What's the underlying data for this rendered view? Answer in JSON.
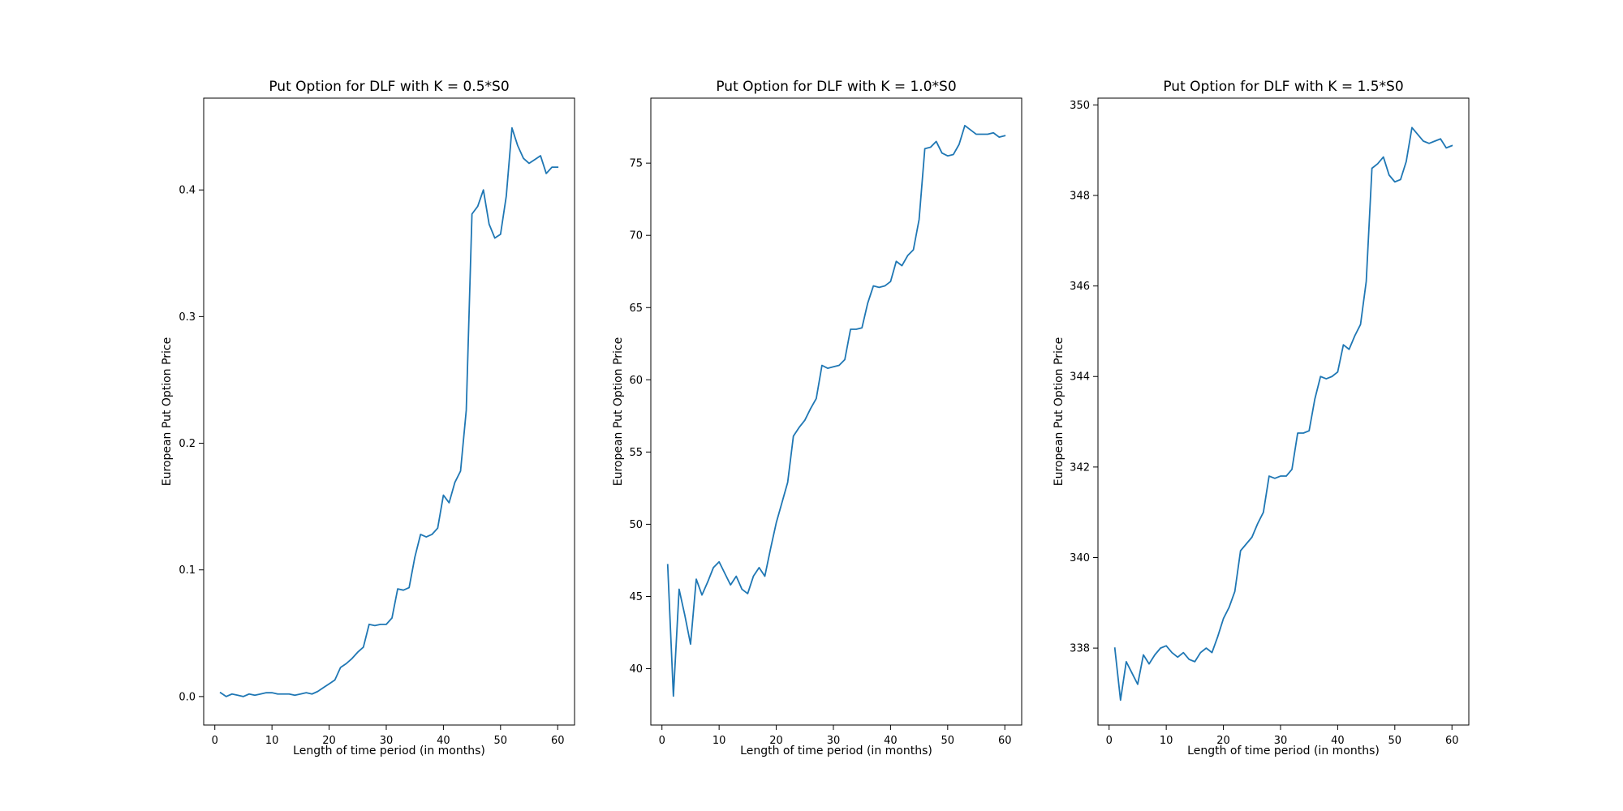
{
  "chart_data": [
    {
      "type": "line",
      "title": "Put Option for DLF with K = 0.5*S0",
      "xlabel": "Length of time period (in months)",
      "ylabel": "European Put Option Price",
      "xlim": [
        -1.95,
        62.95
      ],
      "ylim": [
        -0.0225,
        0.4725
      ],
      "xticks": [
        0,
        10,
        20,
        30,
        40,
        50,
        60
      ],
      "yticks": [
        0.0,
        0.1,
        0.2,
        0.3,
        0.4
      ],
      "ytick_labels": [
        "0.0",
        "0.1",
        "0.2",
        "0.3",
        "0.4"
      ],
      "color": "#1f77b4",
      "x": [
        1,
        2,
        3,
        4,
        5,
        6,
        7,
        8,
        9,
        10,
        11,
        12,
        13,
        14,
        15,
        16,
        17,
        18,
        19,
        20,
        21,
        22,
        23,
        24,
        25,
        26,
        27,
        28,
        29,
        30,
        31,
        32,
        33,
        34,
        35,
        36,
        37,
        38,
        39,
        40,
        41,
        42,
        43,
        44,
        45,
        46,
        47,
        48,
        49,
        50,
        51,
        52,
        53,
        54,
        55,
        56,
        57,
        58,
        59,
        60
      ],
      "y": [
        0.003,
        0.0,
        0.002,
        0.001,
        0.0,
        0.002,
        0.001,
        0.002,
        0.003,
        0.003,
        0.002,
        0.002,
        0.002,
        0.001,
        0.002,
        0.003,
        0.002,
        0.004,
        0.007,
        0.01,
        0.013,
        0.023,
        0.026,
        0.03,
        0.035,
        0.039,
        0.057,
        0.056,
        0.057,
        0.057,
        0.062,
        0.085,
        0.084,
        0.086,
        0.11,
        0.128,
        0.126,
        0.128,
        0.133,
        0.159,
        0.153,
        0.169,
        0.178,
        0.226,
        0.381,
        0.387,
        0.4,
        0.373,
        0.362,
        0.365,
        0.395,
        0.449,
        0.435,
        0.425,
        0.421,
        0.424,
        0.427,
        0.413,
        0.418,
        0.418
      ]
    },
    {
      "type": "line",
      "title": "Put Option for DLF with K = 1.0*S0",
      "xlabel": "Length of time period (in months)",
      "ylabel": "European Put Option Price",
      "xlim": [
        -1.95,
        62.95
      ],
      "ylim": [
        36.1,
        79.5
      ],
      "xticks": [
        0,
        10,
        20,
        30,
        40,
        50,
        60
      ],
      "yticks": [
        40,
        45,
        50,
        55,
        60,
        65,
        70,
        75
      ],
      "ytick_labels": [
        "40",
        "45",
        "50",
        "55",
        "60",
        "65",
        "70",
        "75"
      ],
      "color": "#1f77b4",
      "x": [
        1,
        2,
        3,
        4,
        5,
        6,
        7,
        8,
        9,
        10,
        11,
        12,
        13,
        14,
        15,
        16,
        17,
        18,
        19,
        20,
        21,
        22,
        23,
        24,
        25,
        26,
        27,
        28,
        29,
        30,
        31,
        32,
        33,
        34,
        35,
        36,
        37,
        38,
        39,
        40,
        41,
        42,
        43,
        44,
        45,
        46,
        47,
        48,
        49,
        50,
        51,
        52,
        53,
        54,
        55,
        56,
        57,
        58,
        59,
        60
      ],
      "y": [
        47.2,
        38.1,
        45.5,
        43.7,
        41.7,
        46.2,
        45.1,
        46.0,
        47.0,
        47.4,
        46.6,
        45.8,
        46.4,
        45.5,
        45.2,
        46.4,
        47.0,
        46.4,
        48.3,
        50.1,
        51.5,
        52.9,
        56.1,
        56.7,
        57.2,
        58.0,
        58.7,
        61.0,
        60.8,
        60.9,
        61.0,
        61.4,
        63.5,
        63.5,
        63.6,
        65.3,
        66.5,
        66.4,
        66.5,
        66.8,
        68.2,
        67.9,
        68.6,
        69.0,
        71.1,
        76.0,
        76.1,
        76.5,
        75.7,
        75.5,
        75.6,
        76.3,
        77.6,
        77.3,
        77.0,
        77.0,
        77.0,
        77.1,
        76.8,
        76.9
      ]
    },
    {
      "type": "line",
      "title": "Put Option for DLF with K = 1.5*S0",
      "xlabel": "Length of time period (in months)",
      "ylabel": "European Put Option Price",
      "xlim": [
        -1.95,
        62.95
      ],
      "ylim": [
        336.3,
        350.15
      ],
      "xticks": [
        0,
        10,
        20,
        30,
        40,
        50,
        60
      ],
      "yticks": [
        338,
        340,
        342,
        344,
        346,
        348,
        350
      ],
      "ytick_labels": [
        "338",
        "340",
        "342",
        "344",
        "346",
        "348",
        "350"
      ],
      "color": "#1f77b4",
      "x": [
        1,
        2,
        3,
        4,
        5,
        6,
        7,
        8,
        9,
        10,
        11,
        12,
        13,
        14,
        15,
        16,
        17,
        18,
        19,
        20,
        21,
        22,
        23,
        24,
        25,
        26,
        27,
        28,
        29,
        30,
        31,
        32,
        33,
        34,
        35,
        36,
        37,
        38,
        39,
        40,
        41,
        42,
        43,
        44,
        45,
        46,
        47,
        48,
        49,
        50,
        51,
        52,
        53,
        54,
        55,
        56,
        57,
        58,
        59,
        60
      ],
      "y": [
        338.0,
        336.85,
        337.7,
        337.45,
        337.2,
        337.85,
        337.65,
        337.85,
        338.0,
        338.05,
        337.9,
        337.8,
        337.9,
        337.75,
        337.7,
        337.9,
        338.0,
        337.9,
        338.25,
        338.65,
        338.9,
        339.25,
        340.15,
        340.3,
        340.45,
        340.75,
        341.0,
        341.8,
        341.75,
        341.8,
        341.8,
        341.95,
        342.75,
        342.75,
        342.8,
        343.5,
        344.0,
        343.95,
        344.0,
        344.1,
        344.7,
        344.6,
        344.9,
        345.15,
        346.1,
        348.6,
        348.7,
        348.85,
        348.45,
        348.3,
        348.35,
        348.75,
        349.5,
        349.35,
        349.2,
        349.15,
        349.2,
        349.25,
        349.05,
        349.1
      ]
    }
  ]
}
